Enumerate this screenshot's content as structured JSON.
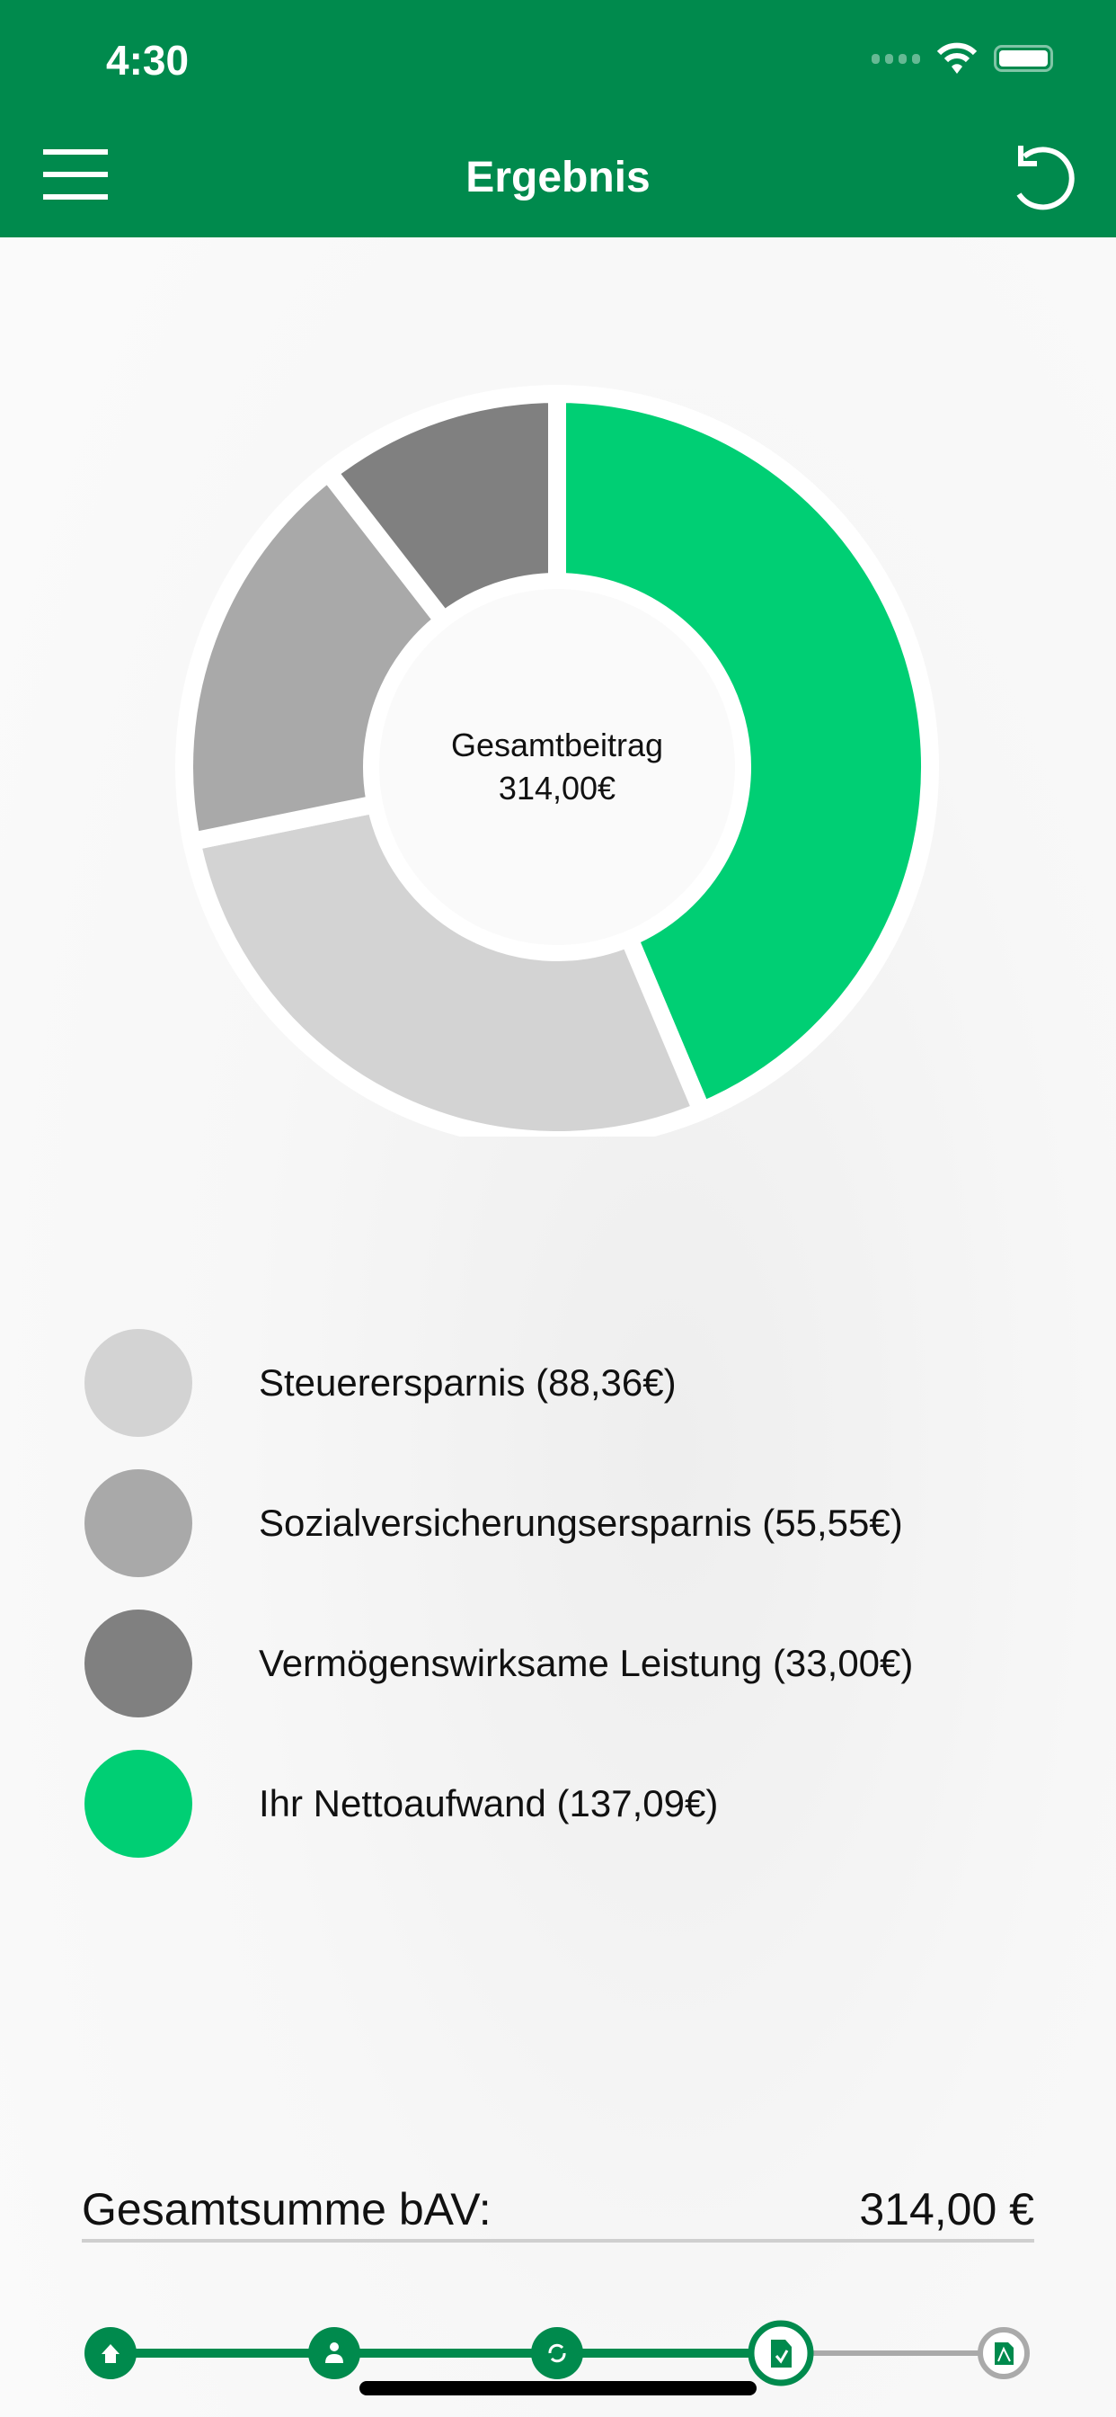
{
  "status_bar": {
    "time": "4:30"
  },
  "header": {
    "title": "Ergebnis",
    "menu_icon": "hamburger-icon",
    "reset_icon": "reset-icon"
  },
  "colors": {
    "brand": "#008A4D",
    "net": "#00CF74",
    "tax": "#D3D3D3",
    "social": "#A9A9A9",
    "vl": "#808080",
    "inactive": "#AAAAAA"
  },
  "chart_data": {
    "type": "pie",
    "donut": true,
    "center_title": "Gesamtbeitrag",
    "center_value": "314,00€",
    "slices": [
      {
        "name": "Ihr Nettoaufwand",
        "value": 137.09,
        "color": "#00CF74"
      },
      {
        "name": "Steuerersparnis",
        "value": 88.36,
        "color": "#D3D3D3"
      },
      {
        "name": "Sozialversicherungsersparnis",
        "value": 55.55,
        "color": "#A9A9A9"
      },
      {
        "name": "Vermögenswirksame Leistung",
        "value": 33.0,
        "color": "#808080"
      }
    ]
  },
  "legend": [
    {
      "label": "Steuerersparnis (88,36€)",
      "color": "#D3D3D3"
    },
    {
      "label": "Sozialversicherungsersparnis (55,55€)",
      "color": "#A9A9A9"
    },
    {
      "label": "Vermögenswirksame Leistung (33,00€)",
      "color": "#808080"
    },
    {
      "label": "Ihr Nettoaufwand (137,09€)",
      "color": "#00CF74"
    }
  ],
  "total": {
    "label": "Gesamtsumme bAV:",
    "value": "314,00  €"
  },
  "progress": {
    "steps": [
      "home",
      "person",
      "refresh",
      "document-check",
      "pdf"
    ],
    "current_step": 4
  }
}
